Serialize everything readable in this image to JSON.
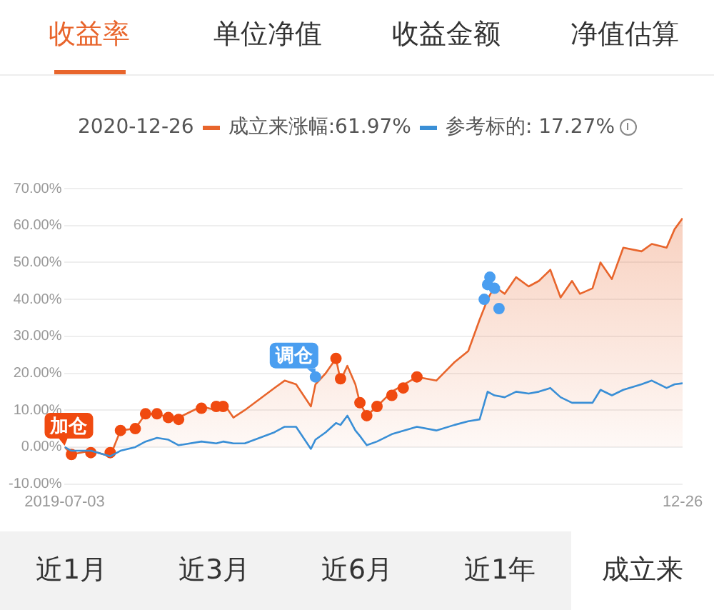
{
  "chart_data": {
    "type": "line",
    "subtitle": "2020-12-26",
    "x": [
      "2019-07-03",
      "2019-07-09",
      "2019-07-26",
      "2019-08-12",
      "2019-08-21",
      "2019-09-03",
      "2019-09-12",
      "2019-09-22",
      "2019-10-02",
      "2019-10-11",
      "2019-10-31",
      "2019-11-13",
      "2019-11-19",
      "2019-11-28",
      "2019-12-08",
      "2019-12-21",
      "2020-01-03",
      "2020-01-12",
      "2020-01-22",
      "2020-02-04",
      "2020-02-08",
      "2020-02-17",
      "2020-02-26",
      "2020-03-01",
      "2020-03-07",
      "2020-03-14",
      "2020-03-18",
      "2020-03-24",
      "2020-04-02",
      "2020-04-15",
      "2020-05-07",
      "2020-05-24",
      "2020-06-09",
      "2020-06-21",
      "2020-07-01",
      "2020-07-08",
      "2020-07-14",
      "2020-07-23",
      "2020-08-02",
      "2020-08-13",
      "2020-08-22",
      "2020-09-01",
      "2020-09-10",
      "2020-09-20",
      "2020-09-27",
      "2020-10-08",
      "2020-10-15",
      "2020-10-25",
      "2020-11-04",
      "2020-11-20",
      "2020-11-29",
      "2020-12-12",
      "2020-12-19",
      "2020-12-26"
    ],
    "series": [
      {
        "name": "成立来涨幅:61.97%",
        "type": "area",
        "color": "#e8652c",
        "values": [
          0,
          -2,
          -1,
          -2.5,
          4.5,
          5,
          9,
          9,
          8,
          8,
          11,
          10,
          12,
          8,
          10,
          13,
          16,
          18,
          17,
          11,
          17,
          20,
          24,
          18,
          22,
          17,
          12,
          8.5,
          11,
          15,
          19,
          18,
          23,
          26,
          34.5,
          40,
          43.5,
          41.5,
          46,
          43.5,
          45,
          48,
          40.5,
          45,
          41.5,
          43,
          50,
          45.5,
          54,
          53,
          55,
          54,
          59,
          61.97
        ]
      },
      {
        "name": "参考标的: 17.27%",
        "color": "#3a8fd6",
        "values": [
          0,
          -1,
          -1,
          -2.5,
          -1,
          0,
          1.5,
          2.5,
          2,
          0.5,
          1.5,
          1,
          1.5,
          1,
          1,
          2.5,
          4,
          5.5,
          5.5,
          -0.5,
          2,
          4,
          6.5,
          6,
          8.5,
          4.5,
          3,
          0.5,
          1.5,
          3.5,
          5.5,
          4.5,
          6,
          7,
          7.5,
          15,
          14,
          13.5,
          15,
          14.5,
          15,
          16,
          13.5,
          12,
          12,
          12,
          15.5,
          14,
          15.5,
          17,
          18,
          16,
          17,
          17.27
        ]
      },
      {
        "type": "scatter",
        "color": "#f04a10",
        "x": [
          "2019-07-09",
          "2019-07-26",
          "2019-08-12",
          "2019-08-21",
          "2019-09-03",
          "2019-09-12",
          "2019-09-22",
          "2019-10-02",
          "2019-10-11",
          "2019-10-31",
          "2019-11-13",
          "2019-11-19",
          "2020-02-26",
          "2020-03-01",
          "2020-03-18",
          "2020-03-24",
          "2020-04-02",
          "2020-04-15",
          "2020-04-25",
          "2020-05-07"
        ],
        "values": [
          -2,
          -1.5,
          -1.5,
          4.5,
          5,
          9,
          9,
          8,
          7.5,
          10.5,
          11,
          11,
          24,
          18.5,
          12,
          8.5,
          11,
          14,
          16,
          19
        ]
      },
      {
        "type": "scatter",
        "color": "#4a9ef0",
        "x": [
          "2020-02-08",
          "2020-07-05",
          "2020-07-08",
          "2020-07-10",
          "2020-07-14",
          "2020-07-18"
        ],
        "values": [
          19,
          40,
          44,
          46,
          43,
          37.5
        ]
      }
    ],
    "annotations": [
      "收益率",
      "单位净值",
      "收益金额",
      "净值估算",
      "近1月",
      "近3月",
      "近6月",
      "近1年",
      "成立来",
      {
        "text": "加仓",
        "x": "2019-07-03",
        "y": 0
      },
      {
        "text": "调仓",
        "x": "2020-02-08",
        "y": 19
      }
    ],
    "xlim": [
      "2019-07-03",
      "2020-12-26"
    ],
    "xticks": [
      {
        "value": "2019-07-03",
        "label": "2019-07-03"
      },
      {
        "value": "2020-12-26",
        "label": "12-26"
      }
    ],
    "ylim": [
      -10,
      70
    ],
    "yticks": [
      {
        "value": -10,
        "label": "-10.00%"
      },
      {
        "value": 0,
        "label": "0.00%"
      },
      {
        "value": 10,
        "label": "10.00%"
      },
      {
        "value": 20,
        "label": "20.00%"
      },
      {
        "value": 30,
        "label": "30.00%"
      },
      {
        "value": 40,
        "label": "40.00%"
      },
      {
        "value": 50,
        "label": "50.00%"
      },
      {
        "value": 60,
        "label": "60.00%"
      },
      {
        "value": 70,
        "label": "70.00%"
      }
    ],
    "grid": "y",
    "legend": "top",
    "line_style": "solid"
  }
}
